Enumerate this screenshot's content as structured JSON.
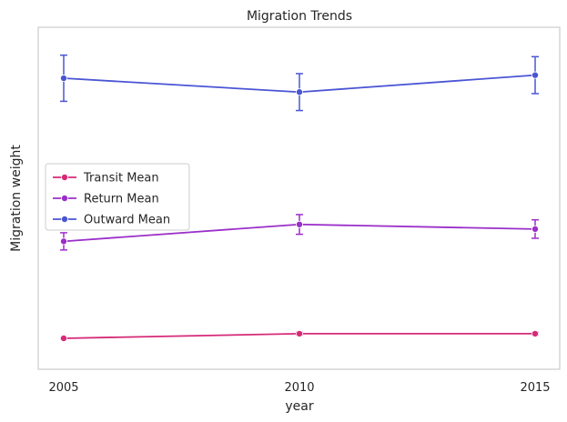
{
  "chart_data": {
    "type": "line",
    "title": "Migration Trends",
    "xlabel": "year",
    "ylabel": "Migration weight",
    "x": [
      2005,
      2010,
      2015
    ],
    "x_tick_labels": [
      "2005",
      "2010",
      "2015"
    ],
    "ylim": [
      0,
      100
    ],
    "y_ticks_shown": false,
    "grid": false,
    "legend_position": "center-left",
    "series": [
      {
        "name": "Transit Mean",
        "color": "#d62a78",
        "values": [
          4.5,
          6.0,
          6.0
        ],
        "err": [
          0.2,
          0.4,
          0.4
        ]
      },
      {
        "name": "Return Mean",
        "color": "#9b2fc9",
        "values": [
          36.0,
          41.5,
          40.0
        ],
        "err": [
          2.8,
          3.2,
          3.0
        ]
      },
      {
        "name": "Outward Mean",
        "color": "#4a55d4",
        "values": [
          89.0,
          84.5,
          90.0
        ],
        "err": [
          7.5,
          6.0,
          6.0
        ]
      }
    ]
  }
}
